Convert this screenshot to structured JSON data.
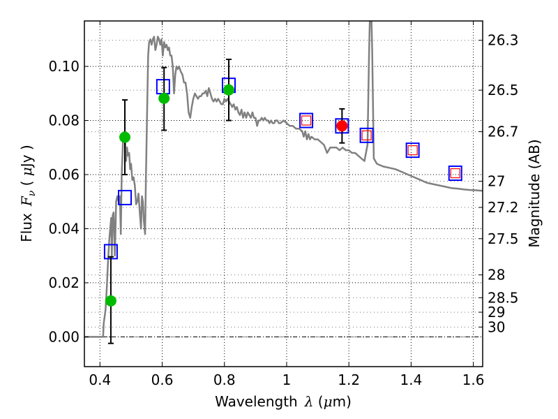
{
  "chart_data": {
    "type": "scatter",
    "title": "",
    "xlabel": "Wavelength",
    "xlabel_symbol": "λ",
    "xlabel_unit_open": " (",
    "xlabel_unit_mu": "μ",
    "xlabel_unit_rest": "m)",
    "ylabel": "Flux",
    "ylabel_symbol": "F",
    "ylabel_subscript": "ν",
    "ylabel_unit_open": " ( ",
    "ylabel_unit_mu": "μ",
    "ylabel_unit_rest": "Jy )",
    "y2label": "Magnitude (AB)",
    "xlim": [
      0.35,
      1.63
    ],
    "ylim": [
      -0.011,
      0.1168
    ],
    "grid": true,
    "xticks": [
      {
        "value": 0.4,
        "label": "0.4"
      },
      {
        "value": 0.6,
        "label": "0.6"
      },
      {
        "value": 0.8,
        "label": "0.8"
      },
      {
        "value": 1.0,
        "label": "1"
      },
      {
        "value": 1.2,
        "label": "1.2"
      },
      {
        "value": 1.4,
        "label": "1.4"
      },
      {
        "value": 1.6,
        "label": "1.6"
      }
    ],
    "yticks": [
      {
        "value": 0.0,
        "label": "0.00"
      },
      {
        "value": 0.02,
        "label": "0.02"
      },
      {
        "value": 0.04,
        "label": "0.04"
      },
      {
        "value": 0.06,
        "label": "0.06"
      },
      {
        "value": 0.08,
        "label": "0.08"
      },
      {
        "value": 0.1,
        "label": "0.10"
      }
    ],
    "y2ticks": [
      {
        "mag": 26.3,
        "label": "26.3"
      },
      {
        "mag": 26.5,
        "label": "26.5"
      },
      {
        "mag": 26.7,
        "label": "26.7"
      },
      {
        "mag": 27.0,
        "label": "27"
      },
      {
        "mag": 27.2,
        "label": "27.2"
      },
      {
        "mag": 27.5,
        "label": "27.5"
      },
      {
        "mag": 28.0,
        "label": "28"
      },
      {
        "mag": 28.5,
        "label": "28.5"
      },
      {
        "mag": 29.0,
        "label": "29"
      },
      {
        "mag": 30.0,
        "label": "30"
      }
    ],
    "colors": {
      "model": "#808080",
      "observed_detection": "#00bb00",
      "observed_highlight": "#ff0000",
      "model_photometry": "#0000ff",
      "model_photometry_inner": "#ff0000",
      "errorbar": "#000000"
    },
    "series": [
      {
        "name": "model spectrum",
        "kind": "line",
        "points": [
          [
            0.35,
            0.0
          ],
          [
            0.402,
            0.0
          ],
          [
            0.41,
            0.0
          ],
          [
            0.412,
            0.005
          ],
          [
            0.418,
            0.01
          ],
          [
            0.422,
            0.018
          ],
          [
            0.426,
            0.028
          ],
          [
            0.43,
            0.036
          ],
          [
            0.433,
            0.04
          ],
          [
            0.436,
            0.044
          ],
          [
            0.438,
            0.03
          ],
          [
            0.441,
            0.045
          ],
          [
            0.444,
            0.046
          ],
          [
            0.448,
            0.03
          ],
          [
            0.452,
            0.05
          ],
          [
            0.456,
            0.052
          ],
          [
            0.46,
            0.05
          ],
          [
            0.464,
            0.052
          ],
          [
            0.467,
            0.038
          ],
          [
            0.47,
            0.06
          ],
          [
            0.474,
            0.072
          ],
          [
            0.478,
            0.075
          ],
          [
            0.481,
            0.073
          ],
          [
            0.484,
            0.065
          ],
          [
            0.487,
            0.07
          ],
          [
            0.49,
            0.067
          ],
          [
            0.494,
            0.068
          ],
          [
            0.497,
            0.062
          ],
          [
            0.5,
            0.064
          ],
          [
            0.504,
            0.058
          ],
          [
            0.508,
            0.059
          ],
          [
            0.512,
            0.056
          ],
          [
            0.516,
            0.049
          ],
          [
            0.52,
            0.05
          ],
          [
            0.524,
            0.053
          ],
          [
            0.528,
            0.046
          ],
          [
            0.532,
            0.04
          ],
          [
            0.535,
            0.052
          ],
          [
            0.538,
            0.05
          ],
          [
            0.541,
            0.043
          ],
          [
            0.545,
            0.038
          ],
          [
            0.548,
            0.06
          ],
          [
            0.552,
            0.086
          ],
          [
            0.555,
            0.104
          ],
          [
            0.558,
            0.109
          ],
          [
            0.562,
            0.11
          ],
          [
            0.566,
            0.108
          ],
          [
            0.57,
            0.11
          ],
          [
            0.574,
            0.111
          ],
          [
            0.578,
            0.106
          ],
          [
            0.582,
            0.108
          ],
          [
            0.586,
            0.111
          ],
          [
            0.59,
            0.11
          ],
          [
            0.594,
            0.108
          ],
          [
            0.598,
            0.11
          ],
          [
            0.602,
            0.104
          ],
          [
            0.606,
            0.109
          ],
          [
            0.61,
            0.107
          ],
          [
            0.614,
            0.108
          ],
          [
            0.618,
            0.106
          ],
          [
            0.622,
            0.107
          ],
          [
            0.626,
            0.104
          ],
          [
            0.63,
            0.104
          ],
          [
            0.634,
            0.1
          ],
          [
            0.638,
            0.09
          ],
          [
            0.642,
            0.097
          ],
          [
            0.646,
            0.1
          ],
          [
            0.65,
            0.099
          ],
          [
            0.654,
            0.1
          ],
          [
            0.66,
            0.098
          ],
          [
            0.665,
            0.097
          ],
          [
            0.67,
            0.094
          ],
          [
            0.675,
            0.094
          ],
          [
            0.68,
            0.09
          ],
          [
            0.685,
            0.083
          ],
          [
            0.69,
            0.081
          ],
          [
            0.695,
            0.085
          ],
          [
            0.7,
            0.088
          ],
          [
            0.705,
            0.09
          ],
          [
            0.71,
            0.089
          ],
          [
            0.715,
            0.088
          ],
          [
            0.72,
            0.089
          ],
          [
            0.725,
            0.089
          ],
          [
            0.73,
            0.09
          ],
          [
            0.735,
            0.09
          ],
          [
            0.74,
            0.091
          ],
          [
            0.745,
            0.089
          ],
          [
            0.75,
            0.092
          ],
          [
            0.755,
            0.09
          ],
          [
            0.76,
            0.088
          ],
          [
            0.765,
            0.087
          ],
          [
            0.77,
            0.088
          ],
          [
            0.775,
            0.087
          ],
          [
            0.78,
            0.088
          ],
          [
            0.785,
            0.087
          ],
          [
            0.79,
            0.086
          ],
          [
            0.795,
            0.086
          ],
          [
            0.8,
            0.088
          ],
          [
            0.805,
            0.087
          ],
          [
            0.81,
            0.088
          ],
          [
            0.815,
            0.087
          ],
          [
            0.82,
            0.086
          ],
          [
            0.825,
            0.085
          ],
          [
            0.83,
            0.086
          ],
          [
            0.835,
            0.084
          ],
          [
            0.84,
            0.085
          ],
          [
            0.845,
            0.083
          ],
          [
            0.85,
            0.082
          ],
          [
            0.855,
            0.084
          ],
          [
            0.86,
            0.081
          ],
          [
            0.865,
            0.083
          ],
          [
            0.87,
            0.081
          ],
          [
            0.875,
            0.083
          ],
          [
            0.88,
            0.082
          ],
          [
            0.885,
            0.081
          ],
          [
            0.89,
            0.083
          ],
          [
            0.895,
            0.081
          ],
          [
            0.9,
            0.081
          ],
          [
            0.905,
            0.078
          ],
          [
            0.91,
            0.08
          ],
          [
            0.915,
            0.08
          ],
          [
            0.92,
            0.081
          ],
          [
            0.925,
            0.08
          ],
          [
            0.93,
            0.081
          ],
          [
            0.935,
            0.08
          ],
          [
            0.94,
            0.08
          ],
          [
            0.945,
            0.079
          ],
          [
            0.95,
            0.08
          ],
          [
            0.955,
            0.079
          ],
          [
            0.96,
            0.079
          ],
          [
            0.965,
            0.08
          ],
          [
            0.97,
            0.08
          ],
          [
            0.975,
            0.079
          ],
          [
            0.98,
            0.079
          ],
          [
            0.99,
            0.08
          ],
          [
            1.0,
            0.079
          ],
          [
            1.01,
            0.078
          ],
          [
            1.02,
            0.078
          ],
          [
            1.03,
            0.077
          ],
          [
            1.04,
            0.077
          ],
          [
            1.05,
            0.076
          ],
          [
            1.055,
            0.074
          ],
          [
            1.06,
            0.076
          ],
          [
            1.065,
            0.073
          ],
          [
            1.07,
            0.075
          ],
          [
            1.075,
            0.073
          ],
          [
            1.08,
            0.074
          ],
          [
            1.09,
            0.073
          ],
          [
            1.1,
            0.073
          ],
          [
            1.11,
            0.072
          ],
          [
            1.12,
            0.071
          ],
          [
            1.13,
            0.068
          ],
          [
            1.14,
            0.07
          ],
          [
            1.15,
            0.07
          ],
          [
            1.16,
            0.07
          ],
          [
            1.17,
            0.069
          ],
          [
            1.18,
            0.07
          ],
          [
            1.19,
            0.069
          ],
          [
            1.2,
            0.069
          ],
          [
            1.21,
            0.068
          ],
          [
            1.22,
            0.068
          ],
          [
            1.23,
            0.067
          ],
          [
            1.24,
            0.066
          ],
          [
            1.25,
            0.065
          ],
          [
            1.26,
            0.071
          ],
          [
            1.265,
            0.106
          ],
          [
            1.27,
            0.13
          ],
          [
            1.275,
            0.106
          ],
          [
            1.28,
            0.066
          ],
          [
            1.29,
            0.064
          ],
          [
            1.31,
            0.063
          ],
          [
            1.33,
            0.0625
          ],
          [
            1.35,
            0.062
          ],
          [
            1.37,
            0.061
          ],
          [
            1.39,
            0.06
          ],
          [
            1.41,
            0.059
          ],
          [
            1.43,
            0.058
          ],
          [
            1.45,
            0.057
          ],
          [
            1.47,
            0.0565
          ],
          [
            1.49,
            0.056
          ],
          [
            1.51,
            0.0555
          ],
          [
            1.53,
            0.055
          ],
          [
            1.55,
            0.0548
          ],
          [
            1.57,
            0.0545
          ],
          [
            1.59,
            0.0543
          ],
          [
            1.61,
            0.0542
          ],
          [
            1.63,
            0.054
          ]
        ]
      },
      {
        "name": "observed photometry",
        "kind": "errorbar",
        "points": [
          {
            "x": 0.435,
            "y": 0.0133,
            "err_low": 0.0157,
            "err_high": 0.0163,
            "color": "observed_detection"
          },
          {
            "x": 0.48,
            "y": 0.0738,
            "err_low": 0.0138,
            "err_high": 0.0138,
            "color": "observed_detection"
          },
          {
            "x": 0.606,
            "y": 0.0882,
            "err_low": 0.0118,
            "err_high": 0.0114,
            "color": "observed_detection"
          },
          {
            "x": 0.814,
            "y": 0.0913,
            "err_low": 0.0113,
            "err_high": 0.0113,
            "color": "observed_detection"
          },
          {
            "x": 1.178,
            "y": 0.078,
            "err_low": 0.0063,
            "err_high": 0.0063,
            "color": "observed_highlight"
          }
        ]
      },
      {
        "name": "model photometry",
        "kind": "square-marker",
        "points": [
          {
            "x": 0.435,
            "y": 0.0315,
            "inner": false
          },
          {
            "x": 0.48,
            "y": 0.0515,
            "inner": false
          },
          {
            "x": 0.603,
            "y": 0.0925,
            "inner": false
          },
          {
            "x": 0.814,
            "y": 0.093,
            "inner": false
          },
          {
            "x": 1.063,
            "y": 0.08,
            "inner": true
          },
          {
            "x": 1.178,
            "y": 0.078,
            "inner": false
          },
          {
            "x": 1.257,
            "y": 0.0745,
            "inner": true
          },
          {
            "x": 1.405,
            "y": 0.069,
            "inner": true
          },
          {
            "x": 1.542,
            "y": 0.0605,
            "inner": true
          }
        ]
      }
    ]
  }
}
